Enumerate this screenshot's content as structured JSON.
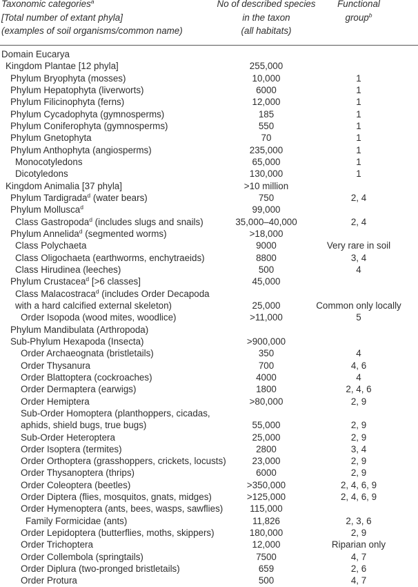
{
  "header": {
    "col1": {
      "line1": "Taxonomic categories",
      "line1_sup": "a",
      "line2": "[Total number of extant phyla]",
      "line3": "(examples of soil organisms/common name)"
    },
    "col2": {
      "line1": "No of described species",
      "line2": "in the taxon",
      "line3": "(all habitats)"
    },
    "col3": {
      "line1": "Functional",
      "line2": "group",
      "line2_sup": "b"
    }
  },
  "rows": [
    {
      "level": 0,
      "label": "Domain Eucarya",
      "sup": "",
      "after": "",
      "count": "",
      "group": ""
    },
    {
      "level": 1,
      "label": "Kingdom Plantae [12 phyla]",
      "sup": "",
      "after": "",
      "count": "255,000",
      "group": ""
    },
    {
      "level": 2,
      "label": "Phylum Bryophyta (mosses)",
      "sup": "",
      "after": "",
      "count": "10,000",
      "group": "1"
    },
    {
      "level": 2,
      "label": "Phylum Hepatophyta (liverworts)",
      "sup": "",
      "after": "",
      "count": "6000",
      "group": "1"
    },
    {
      "level": 2,
      "label": "Phylum Filicinophyta (ferns)",
      "sup": "",
      "after": "",
      "count": "12,000",
      "group": "1"
    },
    {
      "level": 2,
      "label": "Phylum Cycadophyta (gymnosperms)",
      "sup": "",
      "after": "",
      "count": "185",
      "group": "1"
    },
    {
      "level": 2,
      "label": "Phylum Coniferophyta (gymnosperms)",
      "sup": "",
      "after": "",
      "count": "550",
      "group": "1"
    },
    {
      "level": 2,
      "label": "Phylum Gnetophyta",
      "sup": "",
      "after": "",
      "count": "70",
      "group": "1"
    },
    {
      "level": 2,
      "label": "Phylum Anthophyta (angiosperms)",
      "sup": "",
      "after": "",
      "count": "235,000",
      "group": "1"
    },
    {
      "level": 3,
      "label": "Monocotyledons",
      "sup": "",
      "after": "",
      "count": "65,000",
      "group": "1"
    },
    {
      "level": 3,
      "label": "Dicotyledons",
      "sup": "",
      "after": "",
      "count": "130,000",
      "group": "1"
    },
    {
      "level": 1,
      "label": "Kingdom Animalia [37 phyla]",
      "sup": "",
      "after": "",
      "count": ">10 million",
      "group": ""
    },
    {
      "level": 2,
      "label": "Phylum Tardigrada",
      "sup": "d",
      "after": " (water bears)",
      "count": "750",
      "group": "2, 4"
    },
    {
      "level": 2,
      "label": "Phylum Mollusca",
      "sup": "d",
      "after": "",
      "count": "99,000",
      "group": ""
    },
    {
      "level": 3,
      "label": "Class Gastropoda",
      "sup": "d",
      "after": " (includes slugs and snails)",
      "count": "35,000–40,000",
      "group": "2, 4"
    },
    {
      "level": 2,
      "label": "Phylum Annelida",
      "sup": "d",
      "after": " (segmented worms)",
      "count": ">18,000",
      "group": ""
    },
    {
      "level": 3,
      "label": "Class Polychaeta",
      "sup": "",
      "after": "",
      "count": "9000",
      "group": "Very rare in soil"
    },
    {
      "level": 3,
      "label": "Class Oligochaeta (earthworms, enchytraeids)",
      "sup": "",
      "after": "",
      "count": "8800",
      "group": "3, 4"
    },
    {
      "level": 3,
      "label": "Class Hirudinea (leeches)",
      "sup": "",
      "after": "",
      "count": "500",
      "group": "4"
    },
    {
      "level": 2,
      "label": "Phylum Crustacea",
      "sup": "d",
      "after": " [>6 classes]",
      "count": "45,000",
      "group": ""
    },
    {
      "level": 3,
      "label": "Class Malacostraca",
      "sup": "d",
      "after": " (includes Order Decapoda",
      "count": "",
      "group": ""
    },
    {
      "level": 3,
      "label": "with a hard calcified external skeleton)",
      "sup": "",
      "after": "",
      "count": "25,000",
      "group": "Common only locally"
    },
    {
      "level": 4,
      "label": "Order Isopoda (wood mites, woodlice)",
      "sup": "",
      "after": "",
      "count": ">11,000",
      "group": "5"
    },
    {
      "level": 2,
      "label": "Phylum Mandibulata (Arthropoda)",
      "sup": "",
      "after": "",
      "count": "",
      "group": ""
    },
    {
      "level": 2,
      "label": "Sub-Phylum Hexapoda (Insecta)",
      "sup": "",
      "after": "",
      "count": ">900,000",
      "group": ""
    },
    {
      "level": 4,
      "label": "Order Archaeognata (bristletails)",
      "sup": "",
      "after": "",
      "count": "350",
      "group": "4"
    },
    {
      "level": 4,
      "label": "Order Thysanura",
      "sup": "",
      "after": "",
      "count": "700",
      "group": "4, 6"
    },
    {
      "level": 4,
      "label": "Order Blattoptera (cockroaches)",
      "sup": "",
      "after": "",
      "count": "4000",
      "group": "4"
    },
    {
      "level": 4,
      "label": "Order Dermaptera (earwigs)",
      "sup": "",
      "after": "",
      "count": "1800",
      "group": "2, 4, 6"
    },
    {
      "level": 4,
      "label": "Order Hemiptera",
      "sup": "",
      "after": "",
      "count": ">80,000",
      "group": "2, 9"
    },
    {
      "level": 4,
      "label": "Sub-Order Homoptera (planthoppers, cicadas,",
      "sup": "",
      "after": "",
      "count": "",
      "group": ""
    },
    {
      "level": 4,
      "label": "aphids, shield bugs, true bugs)",
      "sup": "",
      "after": "",
      "count": "55,000",
      "group": "2, 9"
    },
    {
      "level": 4,
      "label": "Sub-Order Heteroptera",
      "sup": "",
      "after": "",
      "count": "25,000",
      "group": "2, 9"
    },
    {
      "level": 4,
      "label": "Order Isoptera (termites)",
      "sup": "",
      "after": "",
      "count": "2800",
      "group": "3, 4"
    },
    {
      "level": 4,
      "label": "Order Orthoptera (grasshoppers, crickets, locusts)",
      "sup": "",
      "after": "",
      "count": "23,000",
      "group": "2, 9"
    },
    {
      "level": 4,
      "label": "Order Thysanoptera (thrips)",
      "sup": "",
      "after": "",
      "count": "6000",
      "group": "2, 9"
    },
    {
      "level": 4,
      "label": "Order Coleoptera (beetles)",
      "sup": "",
      "after": "",
      "count": ">350,000",
      "group": "2, 4, 6, 9"
    },
    {
      "level": 4,
      "label": "Order Diptera (flies, mosquitos, gnats, midges)",
      "sup": "",
      "after": "",
      "count": ">125,000",
      "group": "2, 4, 6, 9"
    },
    {
      "level": 4,
      "label": "Order Hymenoptera (ants, bees, wasps, sawflies)",
      "sup": "",
      "after": "",
      "count": "115,000",
      "group": ""
    },
    {
      "level": 5,
      "label": "Family Formicidae (ants)",
      "sup": "",
      "after": "",
      "count": "11,826",
      "group": "2, 3, 6"
    },
    {
      "level": 4,
      "label": "Order Lepidoptera (butterflies, moths, skippers)",
      "sup": "",
      "after": "",
      "count": "180,000",
      "group": "2, 9"
    },
    {
      "level": 4,
      "label": "Order Trichoptera",
      "sup": "",
      "after": "",
      "count": "12,000",
      "group": "Riparian only"
    },
    {
      "level": 4,
      "label": "Order Collembola (springtails)",
      "sup": "",
      "after": "",
      "count": "7500",
      "group": "4, 7"
    },
    {
      "level": 4,
      "label": "Order Diplura (two-pronged bristletails)",
      "sup": "",
      "after": "",
      "count": "659",
      "group": "2, 6"
    },
    {
      "level": 4,
      "label": "Order Protura",
      "sup": "",
      "after": "",
      "count": "500",
      "group": "4, 7"
    }
  ]
}
